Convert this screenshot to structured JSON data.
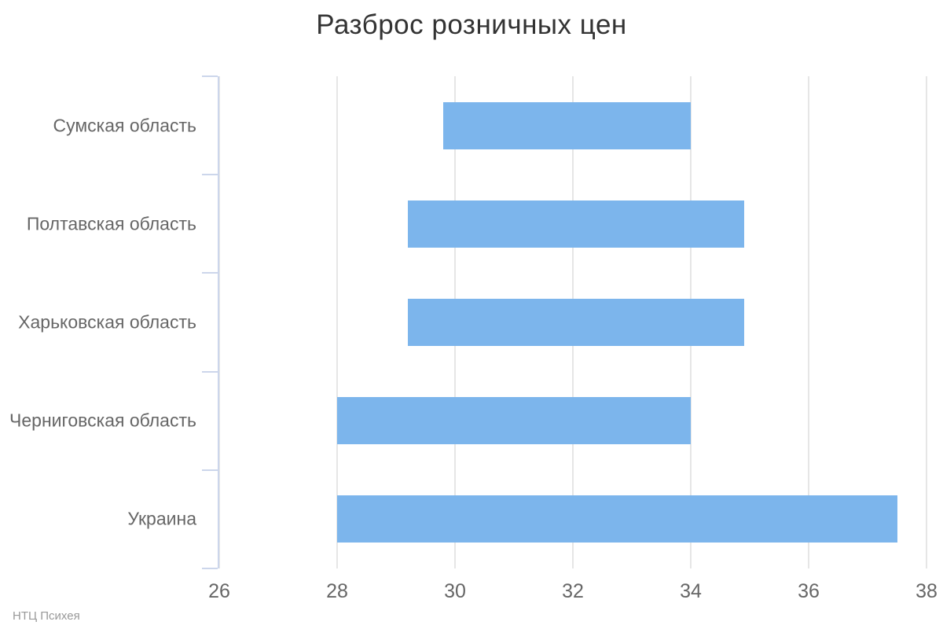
{
  "chart_data": {
    "type": "bar",
    "subtype": "columnrange-horizontal",
    "title": "Разброс розничных цен",
    "categories": [
      "Сумская область",
      "Полтавская область",
      "Харьковская область",
      "Черниговская область",
      "Украина"
    ],
    "ranges": [
      [
        29.8,
        34.0
      ],
      [
        29.2,
        34.9
      ],
      [
        29.2,
        34.9
      ],
      [
        28.0,
        34.0
      ],
      [
        28.0,
        37.5
      ]
    ],
    "xlim": [
      26,
      38
    ],
    "xticks": [
      26,
      28,
      30,
      32,
      34,
      36,
      38
    ],
    "xlabel": "",
    "ylabel": "",
    "grid": true,
    "legend": "none",
    "colors": {
      "bar": "#7cb5ec",
      "gridline": "#e6e6e6",
      "axis_line": "#ccd6eb",
      "labels": "#666666",
      "title": "#333333",
      "credits": "#999999",
      "background": "#ffffff"
    }
  },
  "credits": {
    "text": "НТЦ Психея"
  }
}
